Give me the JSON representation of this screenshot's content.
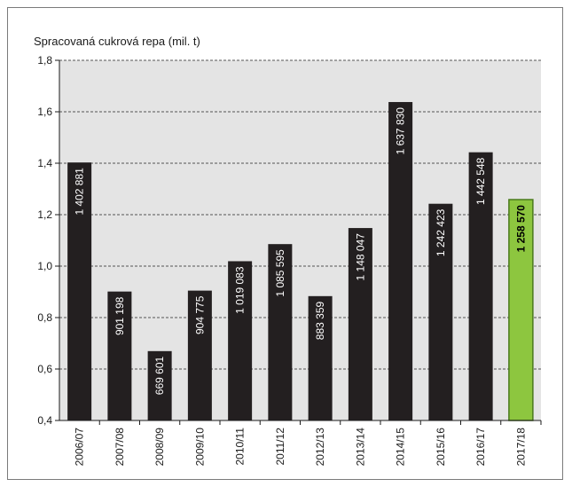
{
  "chart_data": {
    "type": "bar",
    "title": "Spracovaná cukrová repa (mil. t)",
    "categories": [
      "2006/07",
      "2007/08",
      "2008/09",
      "2009/10",
      "2010/11",
      "2011/12",
      "2012/13",
      "2013/14",
      "2014/15",
      "2015/16",
      "2016/17",
      "2017/18"
    ],
    "values": [
      1.402881,
      0.901198,
      0.669601,
      0.904775,
      1.019083,
      1.085595,
      0.883359,
      1.148047,
      1.63783,
      1.242423,
      1.442548,
      1.25857
    ],
    "data_labels": [
      "1 402 881",
      "901 198",
      "669 601",
      "904 775",
      "1 019 083",
      "1 085 595",
      "883 359",
      "1 148 047",
      "1 637 830",
      "1 242 423",
      "1 442 548",
      "1 258 570"
    ],
    "y_ticks": [
      "0,4",
      "0,6",
      "0,8",
      "1,0",
      "1,2",
      "1,4",
      "1,6",
      "1,8"
    ],
    "ylim": [
      0.4,
      1.8
    ],
    "grid": true,
    "colors": {
      "bar": "#231f20",
      "highlight_bar": "#8dc63f",
      "highlight_border": "#4a7a1c",
      "plot_background": "#e4e4e4",
      "grid": "#555555",
      "bar_label": "#ffffff",
      "highlight_label": "#000000"
    },
    "highlight_index": 11
  }
}
